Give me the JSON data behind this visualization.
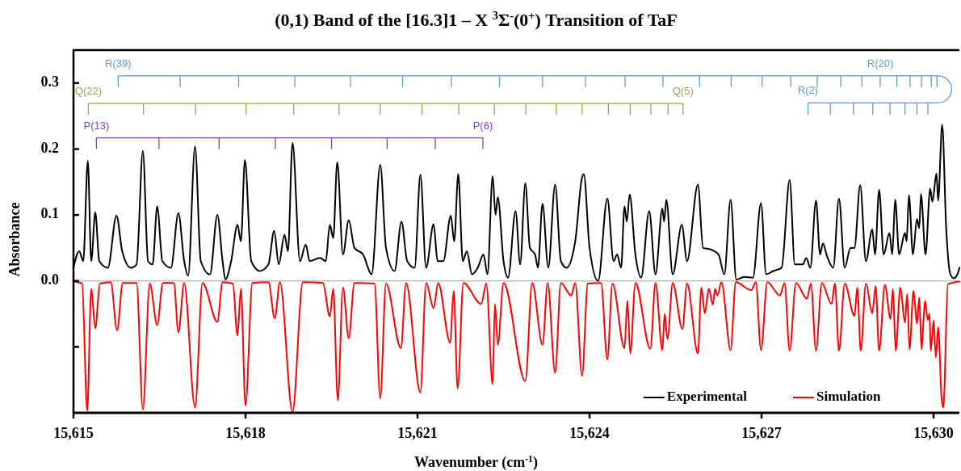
{
  "chart_data": {
    "type": "line",
    "title": "(0,1) Band of the [16.3]1 – X $^{3}$Σ$^{-}$(0$^{+}$) Transition of TaF",
    "xlabel": "Wavenumber (cm$^{-1}$)",
    "ylabel": "Absorbance",
    "xlim": [
      15615,
      15630.45
    ],
    "xticks": [
      {
        "value": 15615,
        "label": "15,615"
      },
      {
        "value": 15618,
        "label": "15,618"
      },
      {
        "value": 15621,
        "label": "15,621"
      },
      {
        "value": 15624,
        "label": "15,624"
      },
      {
        "value": 15627,
        "label": "15,627"
      },
      {
        "value": 15630,
        "label": "15,630"
      }
    ],
    "ylim": [
      -0.2,
      0.35
    ],
    "yticks": [
      {
        "value": -0.1,
        "label": null
      },
      {
        "value": 0,
        "label": "0.0"
      },
      {
        "value": 0.1,
        "label": "0.1"
      },
      {
        "value": 0.2,
        "label": "0.2"
      },
      {
        "value": 0.3,
        "label": "0.3"
      }
    ],
    "grid": false,
    "legend": "bottom right",
    "marker": "none",
    "line_style": "solid",
    "ref_lines": [
      {
        "axis": "y",
        "value": 0,
        "color": "#bfbfbf"
      }
    ],
    "series": [
      {
        "name": "Experimental",
        "color": "#000000",
        "x": [
          15615.0,
          15615.1,
          15615.17,
          15615.25,
          15615.31,
          15615.38,
          15615.45,
          15615.6,
          15615.75,
          15615.85,
          15616.0,
          15616.1,
          15616.21,
          15616.3,
          15616.38,
          15616.46,
          15616.55,
          15616.7,
          15616.83,
          15616.93,
          15617.0,
          15617.12,
          15617.22,
          15617.38,
          15617.51,
          15617.6,
          15617.65,
          15617.75,
          15617.86,
          15617.92,
          15617.99,
          15618.1,
          15618.25,
          15618.4,
          15618.5,
          15618.58,
          15618.68,
          15618.74,
          15618.82,
          15618.95,
          15619.05,
          15619.12,
          15619.3,
          15619.4,
          15619.47,
          15619.53,
          15619.6,
          15619.7,
          15619.8,
          15619.9,
          15620.05,
          15620.2,
          15620.35,
          15620.45,
          15620.6,
          15620.72,
          15620.82,
          15620.95,
          15621.05,
          15621.15,
          15621.28,
          15621.35,
          15621.45,
          15621.58,
          15621.64,
          15621.71,
          15621.79,
          15621.86,
          15621.95,
          15622.05,
          15622.15,
          15622.22,
          15622.31,
          15622.36,
          15622.4,
          15622.5,
          15622.58,
          15622.71,
          15622.79,
          15622.88,
          15622.96,
          15623.05,
          15623.1,
          15623.18,
          15623.28,
          15623.4,
          15623.5,
          15623.6,
          15623.75,
          15623.87,
          15623.9,
          15624.0,
          15624.15,
          15624.31,
          15624.42,
          15624.48,
          15624.55,
          15624.61,
          15624.65,
          15624.7,
          15624.8,
          15624.9,
          15625.04,
          15625.15,
          15625.27,
          15625.3,
          15625.34,
          15625.45,
          15625.61,
          15625.7,
          15625.89,
          15625.98,
          15626.1,
          15626.25,
          15626.35,
          15626.46,
          15626.56,
          15626.7,
          15626.85,
          15626.99,
          15627.08,
          15627.2,
          15627.35,
          15627.49,
          15627.58,
          15627.72,
          15627.78,
          15627.85,
          15627.95,
          15628.02,
          15628.07,
          15628.14,
          15628.25,
          15628.35,
          15628.45,
          15628.55,
          15628.62,
          15628.72,
          15628.82,
          15628.93,
          15628.98,
          15629.05,
          15629.13,
          15629.23,
          15629.28,
          15629.33,
          15629.4,
          15629.5,
          15629.53,
          15629.57,
          15629.64,
          15629.71,
          15629.75,
          15629.78,
          15629.86,
          15629.94,
          15629.98,
          15630.05,
          15630.08,
          15630.15,
          15630.22,
          15630.29,
          15630.35,
          15630.42,
          15630.45
        ],
        "values": [
          0.02,
          0.045,
          0.03,
          0.182,
          0.03,
          0.104,
          0.03,
          0.02,
          0.099,
          0.045,
          0.02,
          0.025,
          0.197,
          0.03,
          0.025,
          0.113,
          0.03,
          0.02,
          0.103,
          0.03,
          0.008,
          0.204,
          0.03,
          0.01,
          0.1,
          0.03,
          0.002,
          0.03,
          0.085,
          0.06,
          0.183,
          0.03,
          0.015,
          0.025,
          0.076,
          0.025,
          0.07,
          0.045,
          0.209,
          0.03,
          0.055,
          0.03,
          0.035,
          0.03,
          0.085,
          0.065,
          0.18,
          0.04,
          0.092,
          0.05,
          0.04,
          0.01,
          0.176,
          0.05,
          0.015,
          0.09,
          0.03,
          0.02,
          0.161,
          0.02,
          0.086,
          0.03,
          0.03,
          0.099,
          0.06,
          0.162,
          0.03,
          0.045,
          0.01,
          0.02,
          0.04,
          0.01,
          0.159,
          0.1,
          0.127,
          0.03,
          0.005,
          0.106,
          0.025,
          0.148,
          0.05,
          0.04,
          0.02,
          0.117,
          0.02,
          0.146,
          0.03,
          0.02,
          0.06,
          0.157,
          0.162,
          0.05,
          0.0,
          0.125,
          0.03,
          0.04,
          0.02,
          0.113,
          0.09,
          0.131,
          0.04,
          0.005,
          0.106,
          0.01,
          0.11,
          0.09,
          0.123,
          0.01,
          0.085,
          0.03,
          0.146,
          0.05,
          0.048,
          0.04,
          0.01,
          0.123,
          0.002,
          0.006,
          0.005,
          0.118,
          0.01,
          0.015,
          0.02,
          0.153,
          0.025,
          0.025,
          0.035,
          0.02,
          0.122,
          0.04,
          0.057,
          0.038,
          0.02,
          0.125,
          0.02,
          0.05,
          0.05,
          0.145,
          0.03,
          0.078,
          0.04,
          0.138,
          0.04,
          0.073,
          0.04,
          0.123,
          0.04,
          0.073,
          0.06,
          0.13,
          0.04,
          0.094,
          0.08,
          0.132,
          0.04,
          0.14,
          0.12,
          0.163,
          0.122,
          0.237,
          0.08,
          0.011,
          0.004,
          0.011,
          0.02
        ]
      },
      {
        "name": "Simulation",
        "color": "#ff0000",
        "x": [
          15615.0,
          15615.15,
          15615.24,
          15615.31,
          15615.38,
          15615.46,
          15615.65,
          15615.76,
          15615.86,
          15616.1,
          15616.21,
          15616.33,
          15616.46,
          15616.56,
          15616.75,
          15616.83,
          15616.93,
          15617.12,
          15617.25,
          15617.51,
          15617.6,
          15617.78,
          15617.86,
          15617.92,
          15618.0,
          15618.12,
          15618.4,
          15618.51,
          15618.6,
          15618.82,
          15619.0,
          15619.35,
          15619.47,
          15619.53,
          15619.61,
          15619.7,
          15619.8,
          15619.9,
          15620.25,
          15620.35,
          15620.45,
          15620.71,
          15620.8,
          15621.05,
          15621.15,
          15621.28,
          15621.36,
          15621.57,
          15621.63,
          15621.7,
          15621.8,
          15622.11,
          15622.2,
          15622.31,
          15622.35,
          15622.4,
          15622.5,
          15622.88,
          15623.0,
          15623.18,
          15623.27,
          15623.4,
          15623.5,
          15623.68,
          15623.75,
          15623.87,
          15623.97,
          15624.2,
          15624.31,
          15624.4,
          15624.61,
          15624.66,
          15624.71,
          15624.8,
          15625.06,
          15625.15,
          15625.27,
          15625.31,
          15625.36,
          15625.45,
          15625.62,
          15625.7,
          15625.89,
          15625.95,
          15626.01,
          15626.08,
          15626.15,
          15626.19,
          15626.23,
          15626.3,
          15626.46,
          15626.55,
          15626.82,
          15626.9,
          15626.99,
          15627.1,
          15627.32,
          15627.4,
          15627.49,
          15627.6,
          15627.79,
          15627.86,
          15627.95,
          15628.05,
          15628.22,
          15628.28,
          15628.35,
          15628.45,
          15628.62,
          15628.67,
          15628.73,
          15628.82,
          15628.93,
          15628.99,
          15629.05,
          15629.15,
          15629.25,
          15629.29,
          15629.34,
          15629.42,
          15629.5,
          15629.54,
          15629.58,
          15629.65,
          15629.71,
          15629.75,
          15629.79,
          15629.85,
          15629.9,
          15629.93,
          15629.95,
          15630.0,
          15630.04,
          15630.08,
          15630.14,
          15630.17,
          15630.25,
          15630.45
        ],
        "values": [
          -0.001,
          -0.004,
          -0.197,
          -0.012,
          -0.072,
          -0.004,
          -0.002,
          -0.075,
          -0.003,
          -0.003,
          -0.195,
          -0.004,
          -0.067,
          -0.003,
          -0.003,
          -0.078,
          -0.003,
          -0.192,
          -0.003,
          -0.062,
          -0.002,
          -0.004,
          -0.083,
          -0.012,
          -0.189,
          -0.003,
          -0.002,
          -0.057,
          -0.002,
          -0.199,
          -0.002,
          -0.003,
          -0.054,
          -0.012,
          -0.181,
          -0.01,
          -0.087,
          -0.003,
          -0.004,
          -0.178,
          -0.004,
          -0.102,
          -0.003,
          -0.169,
          -0.003,
          -0.041,
          -0.003,
          -0.094,
          -0.015,
          -0.163,
          -0.003,
          -0.035,
          -0.004,
          -0.157,
          -0.035,
          -0.097,
          -0.003,
          -0.152,
          -0.003,
          -0.097,
          -0.003,
          -0.139,
          -0.003,
          -0.022,
          -0.003,
          -0.144,
          -0.004,
          -0.003,
          -0.119,
          -0.004,
          -0.102,
          -0.03,
          -0.11,
          -0.003,
          -0.103,
          -0.003,
          -0.105,
          -0.05,
          -0.088,
          -0.003,
          -0.073,
          -0.004,
          -0.11,
          -0.01,
          -0.049,
          -0.012,
          -0.036,
          -0.012,
          -0.022,
          -0.002,
          -0.105,
          -0.002,
          -0.014,
          -0.002,
          -0.105,
          -0.002,
          -0.022,
          -0.003,
          -0.106,
          -0.003,
          -0.027,
          -0.004,
          -0.106,
          -0.003,
          -0.035,
          -0.004,
          -0.106,
          -0.004,
          -0.053,
          -0.01,
          -0.106,
          -0.004,
          -0.049,
          -0.008,
          -0.106,
          -0.006,
          -0.058,
          -0.012,
          -0.106,
          -0.01,
          -0.063,
          -0.02,
          -0.104,
          -0.015,
          -0.065,
          -0.025,
          -0.104,
          -0.03,
          -0.059,
          -0.05,
          -0.106,
          -0.06,
          -0.116,
          -0.07,
          -0.178,
          -0.192,
          -0.005,
          -0.001
        ]
      },
      {
        "color": "#5b9bd5",
        "x": [
          15615.78,
          15616.86,
          15617.88,
          15618.86,
          15619.83,
          15620.74,
          15621.59,
          15622.43,
          15623.18,
          15623.93,
          15624.62,
          15625.28,
          15625.92,
          15626.47,
          15627.01,
          15627.51,
          15627.97,
          15628.38,
          15628.75,
          15629.07,
          15629.36,
          15629.59,
          15629.79,
          15629.96,
          15630.06
        ],
        "values": [
          0.311,
          0.311,
          0.311,
          0.311,
          0.311,
          0.311,
          0.311,
          0.311,
          0.311,
          0.311,
          0.311,
          0.311,
          0.311,
          0.311,
          0.311,
          0.311,
          0.311,
          0.311,
          0.311,
          0.311,
          0.311,
          0.311,
          0.311,
          0.311,
          0.311
        ],
        "errors": [
          [
            0.294,
            0.311
          ],
          [
            0.294,
            0.311
          ],
          [
            0.294,
            0.311
          ],
          [
            0.294,
            0.311
          ],
          [
            0.294,
            0.311
          ],
          [
            0.294,
            0.311
          ],
          [
            0.294,
            0.311
          ],
          [
            0.294,
            0.311
          ],
          [
            0.294,
            0.311
          ],
          [
            0.294,
            0.311
          ],
          [
            0.294,
            0.311
          ],
          [
            0.294,
            0.311
          ],
          [
            0.294,
            0.311
          ],
          [
            0.294,
            0.311
          ],
          [
            0.294,
            0.311
          ],
          [
            0.294,
            0.311
          ],
          [
            0.294,
            0.311
          ],
          [
            0.294,
            0.311
          ],
          [
            0.294,
            0.311
          ],
          [
            0.294,
            0.311
          ],
          [
            0.294,
            0.311
          ],
          [
            0.294,
            0.311
          ],
          [
            0.294,
            0.311
          ],
          [
            0.294,
            0.311
          ],
          [
            0.294,
            0.311
          ]
        ],
        "value_labels": [
          "R(39)",
          null,
          null,
          null,
          null,
          null,
          null,
          null,
          null,
          null,
          null,
          null,
          null,
          null,
          null,
          null,
          null,
          null,
          null,
          "R(20)",
          null,
          null,
          null,
          null,
          null
        ]
      },
      {
        "color": "#5b9bd5",
        "x": [
          15627.81,
          15628.2,
          15628.6,
          15628.94,
          15629.24,
          15629.5,
          15629.71,
          15629.9,
          15630.06
        ],
        "values": [
          0.27,
          0.27,
          0.27,
          0.27,
          0.27,
          0.27,
          0.27,
          0.27,
          0.27
        ],
        "errors": [
          [
            0.252,
            0.27
          ],
          [
            0.252,
            0.27
          ],
          [
            0.252,
            0.27
          ],
          [
            0.252,
            0.27
          ],
          [
            0.252,
            0.27
          ],
          [
            0.252,
            0.27
          ],
          [
            0.252,
            0.27
          ],
          [
            0.252,
            0.27
          ],
          null
        ],
        "value_labels": [
          "R(2)",
          null,
          null,
          null,
          null,
          null,
          null,
          null,
          null
        ]
      },
      {
        "color": "#8faa52",
        "x": [
          15615.26,
          15616.22,
          15617.13,
          15618.01,
          15618.84,
          15619.63,
          15620.35,
          15621.08,
          15621.72,
          15622.34,
          15622.89,
          15623.42,
          15623.87,
          15624.33,
          15624.71,
          15625.07,
          15625.37,
          15625.63
        ],
        "values": [
          0.269,
          0.269,
          0.269,
          0.269,
          0.269,
          0.269,
          0.269,
          0.269,
          0.269,
          0.269,
          0.269,
          0.269,
          0.269,
          0.269,
          0.269,
          0.269,
          0.269,
          0.269
        ],
        "errors": [
          [
            0.252,
            0.269
          ],
          [
            0.252,
            0.269
          ],
          [
            0.252,
            0.269
          ],
          [
            0.252,
            0.269
          ],
          [
            0.252,
            0.269
          ],
          [
            0.252,
            0.269
          ],
          [
            0.252,
            0.269
          ],
          [
            0.252,
            0.269
          ],
          [
            0.252,
            0.269
          ],
          [
            0.252,
            0.269
          ],
          [
            0.252,
            0.269
          ],
          [
            0.252,
            0.269
          ],
          [
            0.252,
            0.269
          ],
          [
            0.252,
            0.269
          ],
          [
            0.252,
            0.269
          ],
          [
            0.252,
            0.269
          ],
          [
            0.252,
            0.269
          ],
          [
            0.252,
            0.269
          ]
        ],
        "value_labels": [
          "Q(22)",
          null,
          null,
          null,
          null,
          null,
          null,
          null,
          null,
          null,
          null,
          null,
          null,
          null,
          null,
          null,
          null,
          "Q(5)"
        ]
      },
      {
        "color": "#7f3fbf",
        "x": [
          15615.4,
          15616.49,
          15617.54,
          15618.52,
          15619.5,
          15620.47,
          15621.31,
          15622.14
        ],
        "values": [
          0.217,
          0.217,
          0.217,
          0.217,
          0.217,
          0.217,
          0.217,
          0.217
        ],
        "errors": [
          [
            0.2,
            0.217
          ],
          [
            0.2,
            0.217
          ],
          [
            0.2,
            0.217
          ],
          [
            0.2,
            0.217
          ],
          [
            0.2,
            0.217
          ],
          [
            0.2,
            0.217
          ],
          [
            0.2,
            0.217
          ],
          [
            0.2,
            0.217
          ]
        ],
        "value_labels": [
          "P(13)",
          null,
          null,
          null,
          null,
          null,
          null,
          "P(6)"
        ]
      }
    ]
  }
}
